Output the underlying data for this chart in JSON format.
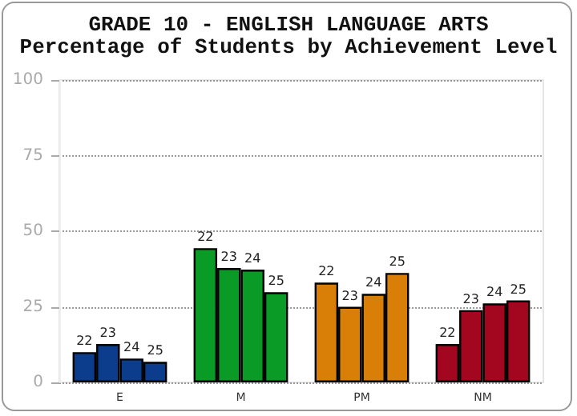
{
  "chart_data": {
    "type": "bar",
    "title": "GRADE 10 - ENGLISH LANGUAGE ARTS",
    "subtitle": "Percentage of Students by Achievement Level",
    "categories": [
      "E",
      "M",
      "PM",
      "NM"
    ],
    "series": [
      {
        "name": "22",
        "colors": [
          "#0b3d8c",
          "#0a9a26",
          "#d97e06",
          "#a3061f"
        ],
        "values": [
          10.0,
          44.4,
          33.0,
          12.7
        ]
      },
      {
        "name": "23",
        "colors": [
          "#0b3d8c",
          "#0a9a26",
          "#d97e06",
          "#a3061f"
        ],
        "values": [
          12.7,
          37.8,
          25.0,
          23.9
        ]
      },
      {
        "name": "24",
        "colors": [
          "#0b3d8c",
          "#0a9a26",
          "#d97e06",
          "#a3061f"
        ],
        "values": [
          7.9,
          37.3,
          29.3,
          26.1
        ]
      },
      {
        "name": "25",
        "colors": [
          "#0b3d8c",
          "#0a9a26",
          "#d97e06",
          "#a3061f"
        ],
        "values": [
          6.8,
          29.8,
          36.2,
          27.1
        ]
      }
    ],
    "ylim": [
      0,
      100
    ],
    "yticks": [
      0,
      25,
      50,
      75,
      100
    ],
    "grid": "y"
  }
}
